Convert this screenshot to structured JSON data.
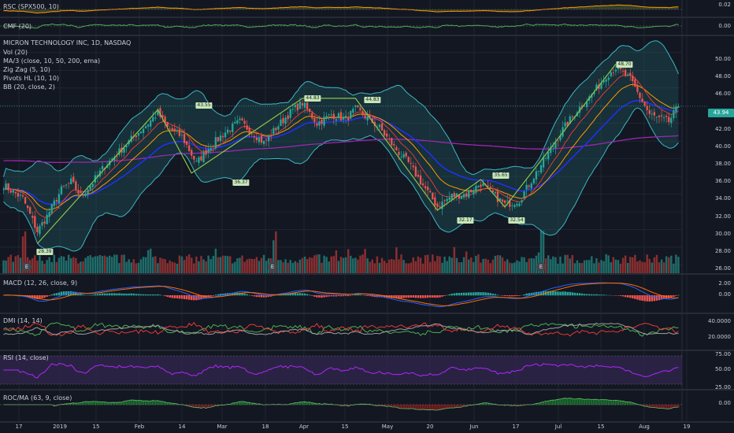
{
  "colors": {
    "background": "#131722",
    "grid": "#2a2e39",
    "up": "#26a69a",
    "down": "#ef5350",
    "bb_fill": "#1f5e63",
    "bb_line": "#3ab7c4",
    "ma10": "#e53935",
    "ma50": "#ff9800",
    "ma200": "#9c27b0",
    "ma_blue": "#2030f0",
    "zigzag": "#8bc34a",
    "macd": "#2962ff",
    "signal": "#ff6d00",
    "dmi_plus": "#4caf50",
    "dmi_minus": "#e53935",
    "adx": "#9e9e9e",
    "rsi": "#b026ff",
    "rsi_band": "#3a2a5a",
    "roc": "#1e7d32"
  },
  "panes": {
    "rsc": {
      "label": "RSC (SPX500, 10)",
      "ticks": [
        "0.02"
      ]
    },
    "cmf": {
      "label": "CMF (20)",
      "ticks": [
        "0.00"
      ]
    },
    "main": {
      "title": "MICRON TECHNOLOGY INC, 1D, NASDAQ",
      "indicators": [
        "Vol (20)",
        "MA/3 (close, 10, 50, 200, ema)",
        "Zig Zag (5, 10)",
        "Pivots HL (10, 10)",
        "BB (20, close, 2)"
      ],
      "ticks": [
        "50.00",
        "48.00",
        "46.00",
        "44.00",
        "42.00",
        "40.00",
        "38.00",
        "36.00",
        "34.00",
        "32.00",
        "30.00",
        "28.00",
        "26.00"
      ],
      "last_price": "43.94"
    },
    "macd": {
      "label": "MACD (12, 26, close, 9)",
      "ticks": [
        "2.00",
        "0.00"
      ]
    },
    "dmi": {
      "label": "DMI (14, 14)",
      "ticks": [
        "40.0000",
        "20.0000"
      ]
    },
    "rsi": {
      "label": "RSI (14, close)",
      "ticks": [
        "75.00",
        "50.00",
        "25.00"
      ]
    },
    "roc": {
      "label": "ROC/MA (63, 9, close)",
      "ticks": [
        "0.00"
      ]
    }
  },
  "x_axis": {
    "labels": [
      "17",
      "2019",
      "15",
      "Feb",
      "14",
      "Mar",
      "18",
      "Apr",
      "15",
      "May",
      "20",
      "Jun",
      "17",
      "Jul",
      "15",
      "Aug",
      "19"
    ]
  },
  "zigzag_labels": [
    "28.39",
    "43.55",
    "36.37",
    "44.83",
    "44.83",
    "32.17",
    "35.65",
    "32.54",
    "48.70"
  ],
  "earnings_marker": "E",
  "chart_data": {
    "type": "candlestick",
    "title": "MICRON TECHNOLOGY INC, 1D, NASDAQ",
    "y_range": [
      25.5,
      51.5
    ],
    "x_labels": [
      "17",
      "2019",
      "15",
      "Feb",
      "14",
      "Mar",
      "18",
      "Apr",
      "15",
      "May",
      "20",
      "Jun",
      "17",
      "Jul",
      "15",
      "Aug",
      "19"
    ],
    "last_close": 43.94,
    "close_anchors": [
      [
        0,
        35.0
      ],
      [
        8,
        33.5
      ],
      [
        14,
        29.8
      ],
      [
        18,
        31.5
      ],
      [
        24,
        34.5
      ],
      [
        28,
        35.4
      ],
      [
        32,
        33.8
      ],
      [
        36,
        35.0
      ],
      [
        42,
        37.2
      ],
      [
        48,
        38.8
      ],
      [
        54,
        40.5
      ],
      [
        60,
        42.0
      ],
      [
        64,
        43.2
      ],
      [
        68,
        41.5
      ],
      [
        74,
        40.5
      ],
      [
        80,
        37.5
      ],
      [
        86,
        39.5
      ],
      [
        92,
        41.0
      ],
      [
        98,
        42.2
      ],
      [
        104,
        40.8
      ],
      [
        108,
        39.8
      ],
      [
        114,
        41.8
      ],
      [
        120,
        43.5
      ],
      [
        124,
        44.3
      ],
      [
        130,
        42.0
      ],
      [
        136,
        43.0
      ],
      [
        142,
        42.5
      ],
      [
        146,
        43.6
      ],
      [
        150,
        42.8
      ],
      [
        156,
        41.5
      ],
      [
        162,
        39.3
      ],
      [
        168,
        37.5
      ],
      [
        174,
        35.0
      ],
      [
        180,
        32.6
      ],
      [
        186,
        33.8
      ],
      [
        192,
        34.0
      ],
      [
        198,
        35.2
      ],
      [
        204,
        33.8
      ],
      [
        208,
        32.8
      ],
      [
        214,
        33.3
      ],
      [
        220,
        36.0
      ],
      [
        226,
        38.6
      ],
      [
        232,
        41.3
      ],
      [
        238,
        43.5
      ],
      [
        244,
        45.2
      ],
      [
        250,
        47.4
      ],
      [
        254,
        48.3
      ],
      [
        260,
        47.0
      ],
      [
        264,
        45.0
      ],
      [
        268,
        43.0
      ],
      [
        272,
        42.5
      ],
      [
        276,
        42.2
      ],
      [
        280,
        43.94
      ]
    ],
    "pivot_points": [
      {
        "label": "28.39",
        "value": 28.39,
        "bar": 14
      },
      {
        "label": "43.55",
        "value": 43.55,
        "bar": 64
      },
      {
        "label": "36.37",
        "value": 36.37,
        "bar": 78
      },
      {
        "label": "44.83",
        "value": 44.83,
        "bar": 124
      },
      {
        "label": "44.83",
        "value": 44.83,
        "bar": 146
      },
      {
        "label": "32.17",
        "value": 32.17,
        "bar": 180
      },
      {
        "label": "35.65",
        "value": 35.65,
        "bar": 198
      },
      {
        "label": "32.54",
        "value": 32.54,
        "bar": 208
      },
      {
        "label": "48.70",
        "value": 48.7,
        "bar": 254
      }
    ],
    "earnings_bars": [
      8,
      112,
      223
    ],
    "rsi_levels": [
      70,
      30
    ],
    "series": [
      {
        "name": "Vol (20)"
      },
      {
        "name": "MA/3 (close, 10, 50, 200, ema)"
      },
      {
        "name": "BB (20, close, 2)"
      },
      {
        "name": "Zig Zag (5, 10)"
      }
    ]
  }
}
